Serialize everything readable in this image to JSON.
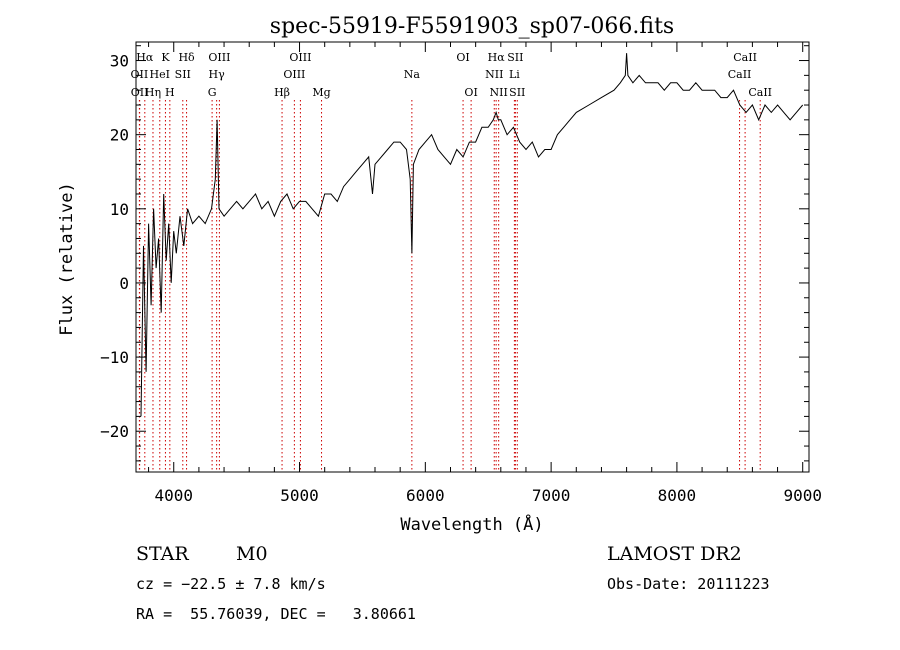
{
  "chart_data": {
    "type": "line",
    "title": "spec-55919-F5591903_sp07-066.fits",
    "xlabel": "Wavelength (Å)",
    "ylabel": "Flux (relative)",
    "xlim": [
      3700,
      9050
    ],
    "ylim": [
      -25.5,
      32.5
    ],
    "xticks": [
      4000,
      5000,
      6000,
      7000,
      8000,
      9000
    ],
    "yticks": [
      -20,
      -10,
      0,
      10,
      20,
      30
    ],
    "grid": false,
    "colors": {
      "line": "#000000",
      "markers": "#cc0000",
      "axes": "#000000"
    },
    "series": [
      {
        "x": [
          3740,
          3760,
          3780,
          3800,
          3820,
          3840,
          3860,
          3880,
          3900,
          3920,
          3940,
          3960,
          3980,
          4000,
          4020,
          4050,
          4080,
          4110,
          4150,
          4200,
          4250,
          4300,
          4330,
          4345,
          4360,
          4400,
          4450,
          4500,
          4550,
          4600,
          4650,
          4700,
          4750,
          4800,
          4850,
          4900,
          4950,
          5000,
          5050,
          5100,
          5150,
          5200,
          5250,
          5300,
          5350,
          5400,
          5450,
          5500,
          5550,
          5580,
          5600,
          5650,
          5700,
          5750,
          5800,
          5850,
          5880,
          5893,
          5905,
          5950,
          6000,
          6050,
          6100,
          6150,
          6200,
          6250,
          6300,
          6350,
          6400,
          6450,
          6500,
          6540,
          6563,
          6580,
          6600,
          6650,
          6700,
          6750,
          6800,
          6850,
          6900,
          6950,
          7000,
          7050,
          7100,
          7150,
          7200,
          7300,
          7400,
          7500,
          7550,
          7590,
          7600,
          7610,
          7650,
          7700,
          7750,
          7800,
          7850,
          7900,
          7950,
          8000,
          8050,
          8100,
          8150,
          8200,
          8250,
          8300,
          8350,
          8400,
          8450,
          8500,
          8550,
          8600,
          8650,
          8700,
          8750,
          8800,
          8850,
          8900,
          8950,
          9000
        ],
        "y": [
          -18,
          5,
          -12,
          8,
          -3,
          10,
          2,
          6,
          -4,
          12,
          3,
          8,
          0,
          7,
          4,
          9,
          5,
          10,
          8,
          9,
          8,
          10,
          14,
          22,
          10,
          9,
          10,
          11,
          10,
          11,
          12,
          10,
          11,
          9,
          11,
          12,
          10,
          11,
          11,
          10,
          9,
          12,
          12,
          11,
          13,
          14,
          15,
          16,
          17,
          12,
          16,
          17,
          18,
          19,
          19,
          18,
          14,
          4,
          16,
          18,
          19,
          20,
          18,
          17,
          16,
          18,
          17,
          19,
          19,
          21,
          21,
          22,
          23,
          22,
          22,
          20,
          21,
          19,
          18,
          19,
          17,
          18,
          18,
          20,
          21,
          22,
          23,
          24,
          25,
          26,
          27,
          28,
          31,
          28,
          27,
          28,
          27,
          27,
          27,
          26,
          27,
          27,
          26,
          26,
          27,
          26,
          26,
          26,
          25,
          25,
          26,
          24,
          23,
          24,
          22,
          24,
          23,
          24,
          23,
          22,
          23,
          24
        ]
      }
    ],
    "lines": [
      {
        "label": "Hα",
        "x": 3770,
        "row": 0
      },
      {
        "label": "OII",
        "x": 3727,
        "row": 1
      },
      {
        "label": "OII",
        "x": 3729,
        "row": 2
      },
      {
        "label": "K",
        "x": 3934,
        "row": 0
      },
      {
        "label": "HeI",
        "x": 3889,
        "row": 1
      },
      {
        "label": "Hη",
        "x": 3835,
        "row": 2
      },
      {
        "label": "Hδ",
        "x": 4102,
        "row": 0
      },
      {
        "label": "SII",
        "x": 4072,
        "row": 1
      },
      {
        "label": "H",
        "x": 3969,
        "row": 2
      },
      {
        "label": "OIII",
        "x": 4363,
        "row": 0
      },
      {
        "label": "Hγ",
        "x": 4341,
        "row": 1
      },
      {
        "label": "G",
        "x": 4305,
        "row": 2
      },
      {
        "label": "OIII",
        "x": 5007,
        "row": 0
      },
      {
        "label": "OIII",
        "x": 4959,
        "row": 1
      },
      {
        "label": "Hβ",
        "x": 4861,
        "row": 2
      },
      {
        "label": "Mg",
        "x": 5175,
        "row": 2
      },
      {
        "label": "Na",
        "x": 5893,
        "row": 1
      },
      {
        "label": "OI",
        "x": 6300,
        "row": 0
      },
      {
        "label": "OI",
        "x": 6364,
        "row": 2
      },
      {
        "label": "Hα",
        "x": 6563,
        "row": 0
      },
      {
        "label": "SII",
        "x": 6716,
        "row": 0
      },
      {
        "label": "NII",
        "x": 6548,
        "row": 1
      },
      {
        "label": "Li",
        "x": 6708,
        "row": 1
      },
      {
        "label": "NII",
        "x": 6583,
        "row": 2
      },
      {
        "label": "SII",
        "x": 6731,
        "row": 2
      },
      {
        "label": "CaII",
        "x": 8542,
        "row": 0
      },
      {
        "label": "CaII",
        "x": 8498,
        "row": 1
      },
      {
        "label": "CaII",
        "x": 8662,
        "row": 2
      }
    ]
  },
  "info": {
    "class_label": "STAR",
    "subclass": "M0",
    "survey": "LAMOST DR2",
    "cz": "cz = −22.5 ± 7.8 km/s",
    "obs_date": "Obs-Date: 20111223",
    "coords": "RA =  55.76039, DEC =   3.80661"
  }
}
